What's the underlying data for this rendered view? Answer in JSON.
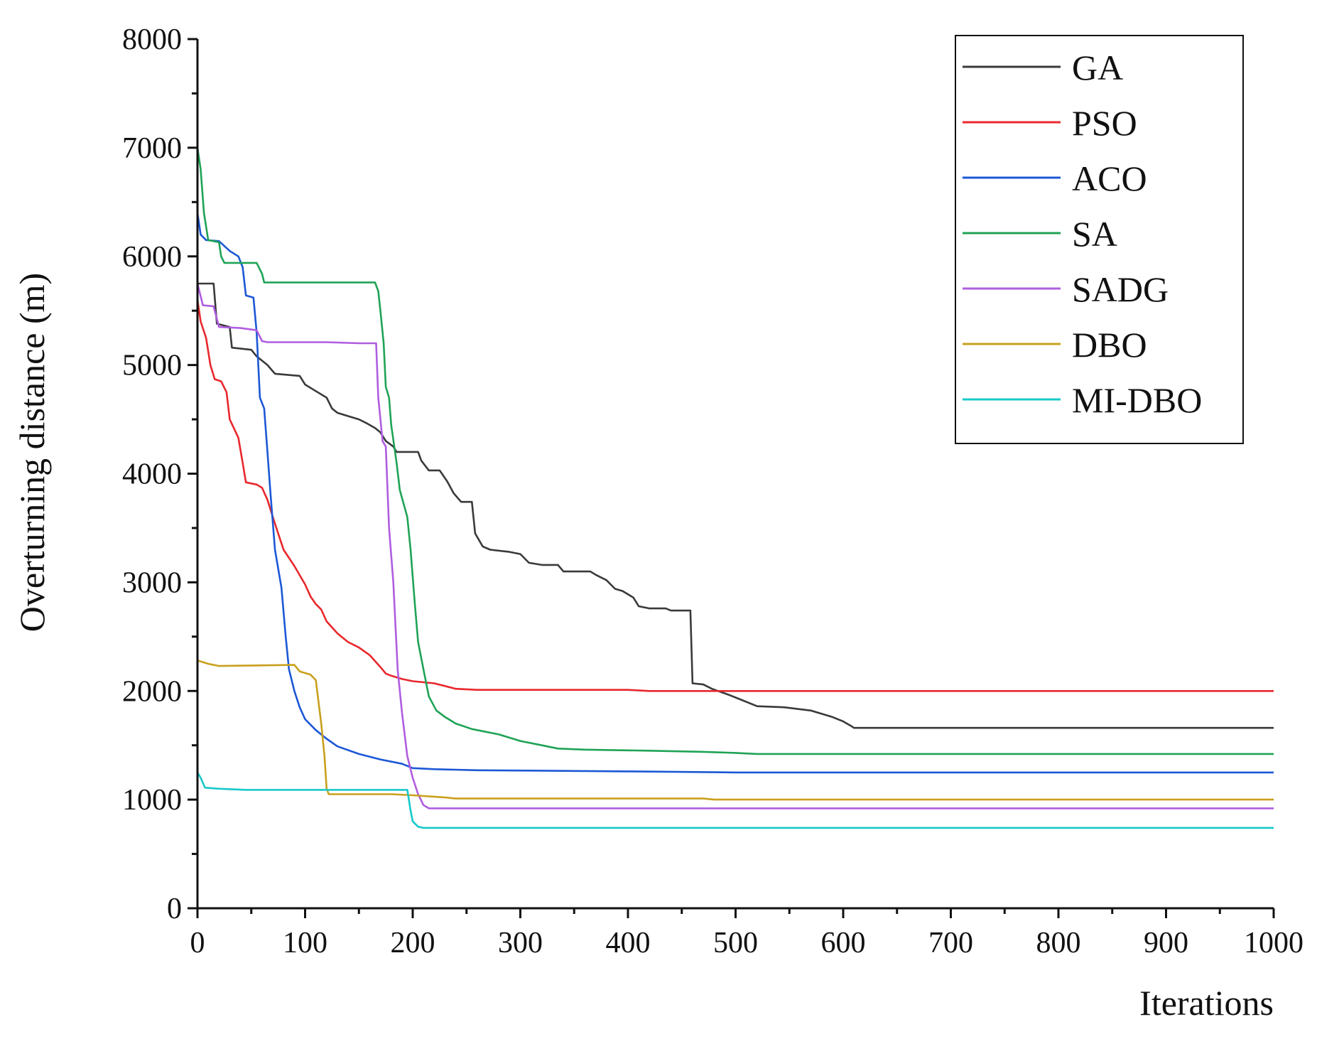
{
  "chart_data": {
    "type": "line",
    "title": "",
    "xlabel": "Iterations",
    "ylabel": "Overturning distance (m)",
    "xlim": [
      0,
      1000
    ],
    "ylim": [
      0,
      8000
    ],
    "x_ticks": [
      "0",
      "100",
      "200",
      "300",
      "400",
      "500",
      "600",
      "700",
      "800",
      "900",
      "1000"
    ],
    "y_ticks": [
      "0",
      "1000",
      "2000",
      "3000",
      "4000",
      "5000",
      "6000",
      "7000",
      "8000"
    ],
    "grid": false,
    "legend_position": "top-right",
    "series": [
      {
        "name": "GA",
        "color": "#3a3a3a",
        "points": [
          [
            0,
            5750
          ],
          [
            15,
            5750
          ],
          [
            18,
            5380
          ],
          [
            30,
            5350
          ],
          [
            32,
            5160
          ],
          [
            50,
            5140
          ],
          [
            55,
            5080
          ],
          [
            65,
            5000
          ],
          [
            72,
            4920
          ],
          [
            95,
            4900
          ],
          [
            100,
            4820
          ],
          [
            110,
            4760
          ],
          [
            120,
            4700
          ],
          [
            125,
            4600
          ],
          [
            130,
            4560
          ],
          [
            140,
            4530
          ],
          [
            150,
            4500
          ],
          [
            158,
            4460
          ],
          [
            165,
            4420
          ],
          [
            170,
            4380
          ],
          [
            175,
            4300
          ],
          [
            182,
            4250
          ],
          [
            185,
            4200
          ],
          [
            205,
            4200
          ],
          [
            208,
            4120
          ],
          [
            215,
            4030
          ],
          [
            225,
            4030
          ],
          [
            232,
            3930
          ],
          [
            238,
            3820
          ],
          [
            245,
            3740
          ],
          [
            255,
            3740
          ],
          [
            258,
            3450
          ],
          [
            265,
            3330
          ],
          [
            272,
            3300
          ],
          [
            290,
            3280
          ],
          [
            300,
            3260
          ],
          [
            308,
            3180
          ],
          [
            320,
            3160
          ],
          [
            335,
            3160
          ],
          [
            340,
            3100
          ],
          [
            365,
            3100
          ],
          [
            370,
            3070
          ],
          [
            380,
            3020
          ],
          [
            388,
            2940
          ],
          [
            395,
            2920
          ],
          [
            405,
            2860
          ],
          [
            410,
            2780
          ],
          [
            420,
            2760
          ],
          [
            435,
            2760
          ],
          [
            440,
            2740
          ],
          [
            458,
            2740
          ],
          [
            460,
            2070
          ],
          [
            470,
            2060
          ],
          [
            478,
            2020
          ],
          [
            495,
            1960
          ],
          [
            505,
            1920
          ],
          [
            520,
            1860
          ],
          [
            545,
            1850
          ],
          [
            570,
            1820
          ],
          [
            590,
            1760
          ],
          [
            600,
            1720
          ],
          [
            607,
            1680
          ],
          [
            610,
            1660
          ],
          [
            1000,
            1660
          ]
        ]
      },
      {
        "name": "PSO",
        "color": "#e8282d",
        "points": [
          [
            0,
            5600
          ],
          [
            3,
            5400
          ],
          [
            8,
            5250
          ],
          [
            12,
            5000
          ],
          [
            16,
            4870
          ],
          [
            22,
            4850
          ],
          [
            27,
            4750
          ],
          [
            30,
            4500
          ],
          [
            38,
            4330
          ],
          [
            42,
            4100
          ],
          [
            45,
            3920
          ],
          [
            55,
            3900
          ],
          [
            60,
            3870
          ],
          [
            65,
            3760
          ],
          [
            70,
            3600
          ],
          [
            75,
            3450
          ],
          [
            80,
            3300
          ],
          [
            90,
            3150
          ],
          [
            100,
            2980
          ],
          [
            105,
            2870
          ],
          [
            110,
            2800
          ],
          [
            115,
            2750
          ],
          [
            120,
            2640
          ],
          [
            130,
            2530
          ],
          [
            140,
            2450
          ],
          [
            150,
            2400
          ],
          [
            160,
            2330
          ],
          [
            170,
            2220
          ],
          [
            175,
            2160
          ],
          [
            180,
            2140
          ],
          [
            190,
            2110
          ],
          [
            200,
            2090
          ],
          [
            220,
            2070
          ],
          [
            240,
            2020
          ],
          [
            260,
            2010
          ],
          [
            400,
            2010
          ],
          [
            420,
            2000
          ],
          [
            1000,
            2000
          ]
        ]
      },
      {
        "name": "ACO",
        "color": "#1c58d6",
        "points": [
          [
            0,
            6400
          ],
          [
            3,
            6200
          ],
          [
            8,
            6150
          ],
          [
            20,
            6140
          ],
          [
            30,
            6050
          ],
          [
            38,
            6000
          ],
          [
            42,
            5900
          ],
          [
            45,
            5640
          ],
          [
            52,
            5620
          ],
          [
            55,
            5300
          ],
          [
            58,
            4700
          ],
          [
            62,
            4600
          ],
          [
            65,
            4200
          ],
          [
            68,
            3800
          ],
          [
            72,
            3300
          ],
          [
            78,
            2950
          ],
          [
            82,
            2500
          ],
          [
            85,
            2200
          ],
          [
            90,
            2000
          ],
          [
            95,
            1850
          ],
          [
            100,
            1740
          ],
          [
            110,
            1640
          ],
          [
            120,
            1560
          ],
          [
            130,
            1490
          ],
          [
            150,
            1420
          ],
          [
            170,
            1370
          ],
          [
            190,
            1330
          ],
          [
            200,
            1290
          ],
          [
            220,
            1280
          ],
          [
            260,
            1270
          ],
          [
            400,
            1260
          ],
          [
            500,
            1250
          ],
          [
            1000,
            1250
          ]
        ]
      },
      {
        "name": "SA",
        "color": "#1fa356",
        "points": [
          [
            0,
            7000
          ],
          [
            3,
            6800
          ],
          [
            6,
            6400
          ],
          [
            10,
            6150
          ],
          [
            20,
            6130
          ],
          [
            22,
            6000
          ],
          [
            25,
            5940
          ],
          [
            55,
            5940
          ],
          [
            60,
            5840
          ],
          [
            62,
            5760
          ],
          [
            165,
            5760
          ],
          [
            168,
            5680
          ],
          [
            170,
            5500
          ],
          [
            173,
            5200
          ],
          [
            175,
            4800
          ],
          [
            178,
            4700
          ],
          [
            180,
            4450
          ],
          [
            185,
            4100
          ],
          [
            188,
            3850
          ],
          [
            195,
            3600
          ],
          [
            198,
            3300
          ],
          [
            202,
            2800
          ],
          [
            205,
            2450
          ],
          [
            210,
            2200
          ],
          [
            215,
            1950
          ],
          [
            222,
            1820
          ],
          [
            230,
            1760
          ],
          [
            240,
            1700
          ],
          [
            255,
            1650
          ],
          [
            280,
            1600
          ],
          [
            300,
            1540
          ],
          [
            320,
            1500
          ],
          [
            335,
            1470
          ],
          [
            360,
            1460
          ],
          [
            420,
            1450
          ],
          [
            470,
            1440
          ],
          [
            500,
            1430
          ],
          [
            520,
            1420
          ],
          [
            1000,
            1420
          ]
        ]
      },
      {
        "name": "SADG",
        "color": "#b05de0",
        "points": [
          [
            0,
            5750
          ],
          [
            5,
            5550
          ],
          [
            15,
            5540
          ],
          [
            20,
            5350
          ],
          [
            40,
            5340
          ],
          [
            55,
            5320
          ],
          [
            60,
            5220
          ],
          [
            65,
            5210
          ],
          [
            120,
            5210
          ],
          [
            150,
            5200
          ],
          [
            166,
            5200
          ],
          [
            168,
            4700
          ],
          [
            172,
            4300
          ],
          [
            175,
            4250
          ],
          [
            178,
            3500
          ],
          [
            182,
            3000
          ],
          [
            186,
            2200
          ],
          [
            190,
            1800
          ],
          [
            195,
            1400
          ],
          [
            200,
            1200
          ],
          [
            205,
            1050
          ],
          [
            210,
            950
          ],
          [
            215,
            920
          ],
          [
            1000,
            920
          ]
        ]
      },
      {
        "name": "DBO",
        "color": "#c9a01d",
        "points": [
          [
            0,
            2280
          ],
          [
            10,
            2250
          ],
          [
            20,
            2230
          ],
          [
            90,
            2240
          ],
          [
            95,
            2180
          ],
          [
            105,
            2150
          ],
          [
            110,
            2100
          ],
          [
            115,
            1700
          ],
          [
            118,
            1400
          ],
          [
            120,
            1100
          ],
          [
            122,
            1050
          ],
          [
            180,
            1050
          ],
          [
            200,
            1040
          ],
          [
            230,
            1020
          ],
          [
            240,
            1010
          ],
          [
            470,
            1010
          ],
          [
            480,
            1000
          ],
          [
            1000,
            1000
          ]
        ]
      },
      {
        "name": "MI-DBO",
        "color": "#18c9c9",
        "points": [
          [
            0,
            1250
          ],
          [
            3,
            1200
          ],
          [
            7,
            1110
          ],
          [
            20,
            1100
          ],
          [
            45,
            1090
          ],
          [
            195,
            1090
          ],
          [
            198,
            900
          ],
          [
            200,
            800
          ],
          [
            205,
            750
          ],
          [
            210,
            740
          ],
          [
            1000,
            740
          ]
        ]
      }
    ]
  }
}
